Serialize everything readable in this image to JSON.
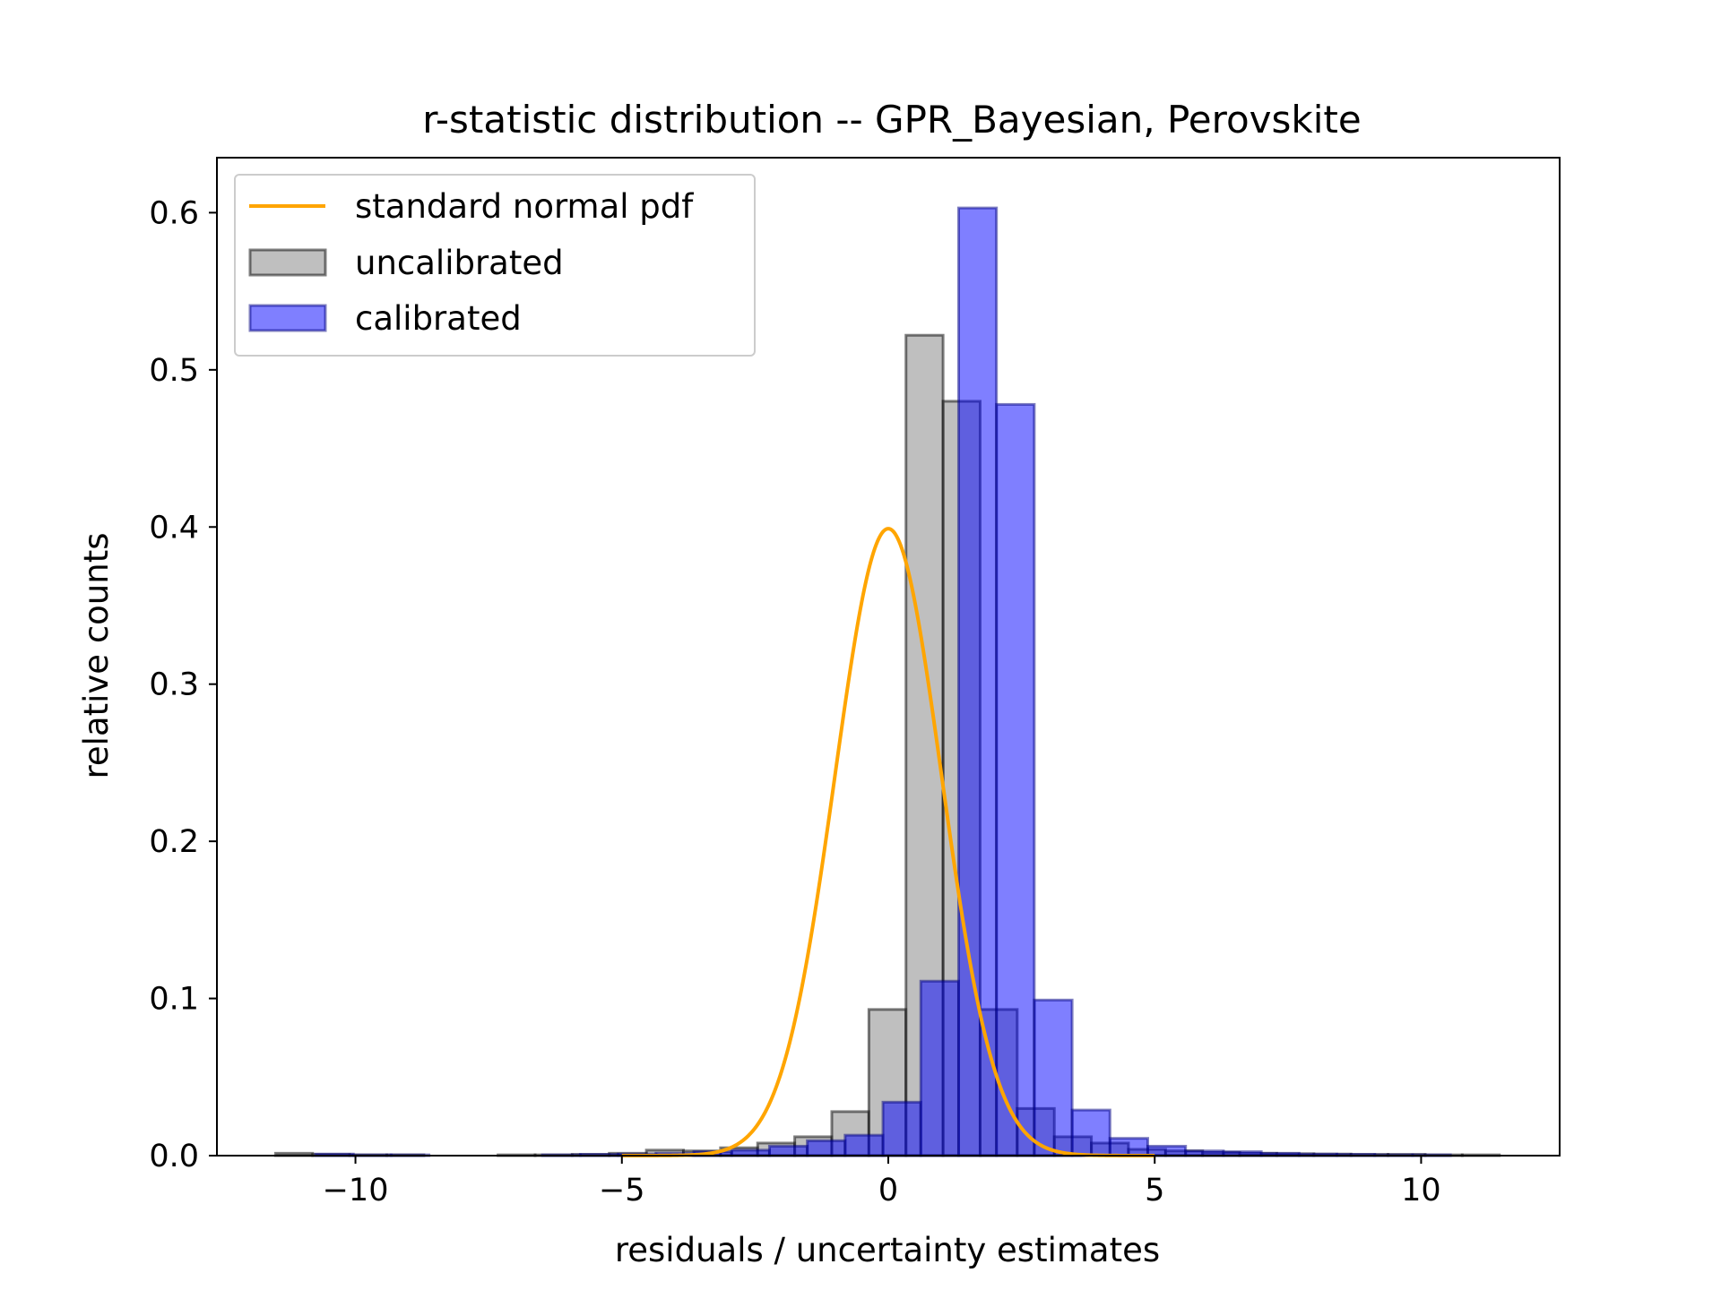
{
  "chart_data": {
    "type": "bar",
    "title": "r-statistic distribution -- GPR_Bayesian, Perovskite",
    "xlabel": "residuals / uncertainty estimates",
    "ylabel": "relative counts",
    "xlim": [
      -12.6,
      12.6
    ],
    "ylim": [
      0,
      0.635
    ],
    "xticks": [
      -10,
      -5,
      0,
      5,
      10
    ],
    "xtick_labels": [
      "−10",
      "−5",
      "0",
      "5",
      "10"
    ],
    "yticks": [
      0.0,
      0.1,
      0.2,
      0.3,
      0.4,
      0.5,
      0.6
    ],
    "ytick_labels": [
      "0.0",
      "0.1",
      "0.2",
      "0.3",
      "0.4",
      "0.5",
      "0.6"
    ],
    "grid": false,
    "legend_position": "upper-left",
    "legend": [
      {
        "label": "standard normal pdf",
        "kind": "line",
        "color": "#FFA500"
      },
      {
        "label": "uncalibrated",
        "kind": "patch",
        "color": "#808080"
      },
      {
        "label": "calibrated",
        "kind": "patch",
        "color": "#0000FF"
      }
    ],
    "series": [
      {
        "name": "uncalibrated",
        "color": "#808080",
        "edgecolor": "#000000",
        "alpha": 0.5,
        "bin_start": -11.5,
        "bin_width": 0.696,
        "values": [
          0.0015,
          0.0008,
          0.0005,
          0.0005,
          0,
          0,
          0.0005,
          0.0005,
          0.0008,
          0.0015,
          0.0035,
          0.003,
          0.005,
          0.008,
          0.012,
          0.028,
          0.093,
          0.522,
          0.48,
          0.093,
          0.03,
          0.012,
          0.008,
          0.004,
          0.003,
          0.002,
          0.0015,
          0.0012,
          0.001,
          0.0008,
          0.0008,
          0.0005,
          0.0005
        ]
      },
      {
        "name": "calibrated",
        "color": "#0000FF",
        "edgecolor": "#000080",
        "alpha": 0.5,
        "bin_start": -10.75,
        "bin_width": 0.71,
        "values": [
          0.001,
          0.0005,
          0.0005,
          0,
          0,
          0,
          0.0005,
          0.0008,
          0.001,
          0.0015,
          0.0025,
          0.0035,
          0.006,
          0.0095,
          0.013,
          0.034,
          0.111,
          0.603,
          0.478,
          0.099,
          0.029,
          0.011,
          0.006,
          0.003,
          0.0025,
          0.0015,
          0.001,
          0.0008,
          0.0005,
          0.0005
        ]
      },
      {
        "name": "standard normal pdf",
        "type": "line",
        "color": "#FFA500",
        "x_range": [
          -5,
          5
        ],
        "function": "standard normal pdf"
      }
    ]
  }
}
